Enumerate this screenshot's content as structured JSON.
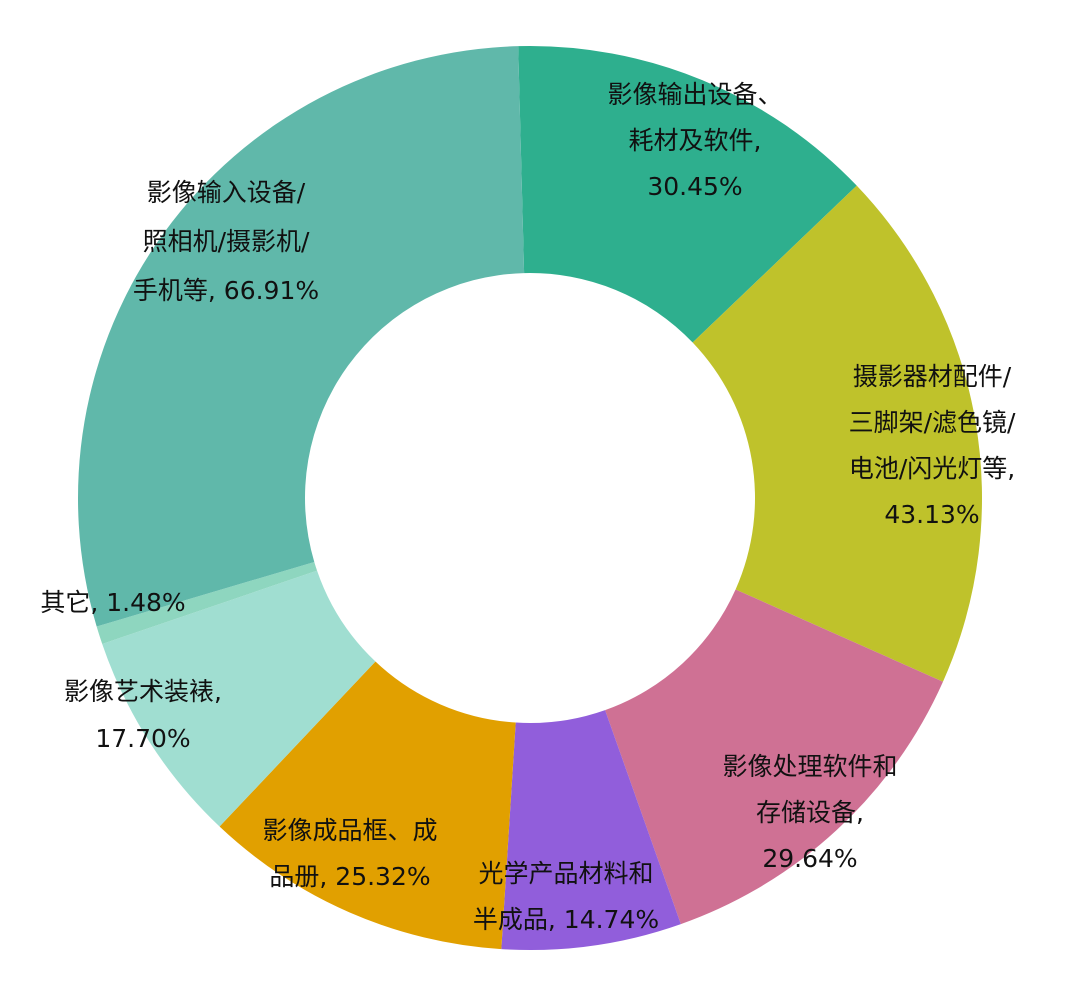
{
  "chart_data": {
    "type": "pie",
    "variant": "donut",
    "title": "",
    "legend": "none",
    "slices": [
      {
        "name": "影像输出设备、耗材及软件",
        "value": 30.45,
        "label_lines": [
          "影像输出设备、",
          "耗材及软件,",
          "30.45%"
        ],
        "color": "#2EAF8E"
      },
      {
        "name": "摄影器材配件/三脚架/滤色镜/电池/闪光灯等",
        "value": 43.13,
        "label_lines": [
          "摄影器材配件/",
          "三脚架/滤色镜/",
          "电池/闪光灯等,",
          "43.13%"
        ],
        "color": "#BFC22B"
      },
      {
        "name": "影像处理软件和存储设备",
        "value": 29.64,
        "label_lines": [
          "影像处理软件和",
          "存储设备,",
          "29.64%"
        ],
        "color": "#CF7194"
      },
      {
        "name": "光学产品材料和半成品",
        "value": 14.74,
        "label_lines": [
          "光学产品材料和",
          "半成品, 14.74%"
        ],
        "color": "#915EDB"
      },
      {
        "name": "影像成品框、成品册",
        "value": 25.32,
        "label_lines": [
          "影像成品框、成",
          "品册, 25.32%"
        ],
        "color": "#E1A000"
      },
      {
        "name": "影像艺术装裱",
        "value": 17.7,
        "label_lines": [
          "影像艺术装裱,",
          "17.70%"
        ],
        "color": "#A0DED1"
      },
      {
        "name": "其它",
        "value": 1.48,
        "label_lines": [
          "其它, 1.48%"
        ],
        "color": "#8ED6BF"
      },
      {
        "name": "影像输入设备/照相机/摄影机/手机等",
        "value": 66.91,
        "label_lines": [
          "影像输入设备/",
          "照相机/摄影机/",
          "手机等, 66.91%"
        ],
        "color": "#60B8AA"
      }
    ]
  }
}
